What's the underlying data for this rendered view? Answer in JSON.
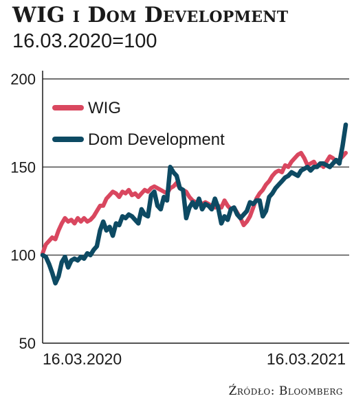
{
  "header": {
    "title": "WIG i Dom Development",
    "subtitle": "16.03.2020=100"
  },
  "source": "Źródło: Bloomberg",
  "chart_data": {
    "type": "line",
    "ylim": [
      50,
      200
    ],
    "yticks": [
      "50",
      "100",
      "150",
      "200"
    ],
    "xticks": [
      "16.03.2020",
      "16.03.2021"
    ],
    "grid": "horizontal",
    "legend_position": "top-left",
    "colors": {
      "wig": "#d9475f",
      "dom": "#0d4a63"
    },
    "series": [
      {
        "name": "WIG",
        "color": "#d9475f",
        "values": [
          101,
          106,
          108,
          110,
          109,
          114,
          118,
          121,
          119,
          120,
          118,
          121,
          119,
          121,
          119,
          120,
          122,
          125,
          128,
          128,
          132,
          134,
          136,
          135,
          133,
          136,
          135,
          137,
          134,
          135,
          133,
          135,
          137,
          136,
          138,
          139,
          138,
          137,
          136,
          135,
          138,
          139,
          141,
          138,
          137,
          136,
          133,
          131,
          130,
          129,
          129,
          130,
          129,
          128,
          127,
          128,
          127,
          131,
          128,
          126,
          127,
          124,
          121,
          117,
          119,
          122,
          127,
          132,
          135,
          137,
          140,
          142,
          145,
          147,
          148,
          147,
          151,
          150,
          153,
          155,
          157,
          158,
          155,
          151,
          152,
          153,
          150,
          152,
          150,
          153,
          156,
          155,
          153,
          154,
          156,
          158
        ]
      },
      {
        "name": "Dom Development",
        "color": "#0d4a63",
        "values": [
          100,
          99,
          95,
          90,
          84,
          88,
          96,
          99,
          93,
          97,
          98,
          97,
          99,
          98,
          101,
          100,
          103,
          105,
          114,
          119,
          114,
          116,
          111,
          118,
          117,
          122,
          121,
          123,
          122,
          120,
          118,
          126,
          123,
          122,
          134,
          136,
          128,
          126,
          133,
          131,
          150,
          147,
          145,
          138,
          137,
          121,
          127,
          130,
          127,
          132,
          126,
          129,
          128,
          126,
          132,
          127,
          118,
          122,
          120,
          126,
          127,
          123,
          121,
          123,
          125,
          130,
          129,
          131,
          131,
          122,
          125,
          133,
          135,
          138,
          140,
          142,
          144,
          145,
          147,
          146,
          145,
          148,
          149,
          150,
          148,
          150,
          150,
          152,
          152,
          151,
          150,
          152,
          154,
          152,
          162,
          174
        ]
      }
    ]
  }
}
